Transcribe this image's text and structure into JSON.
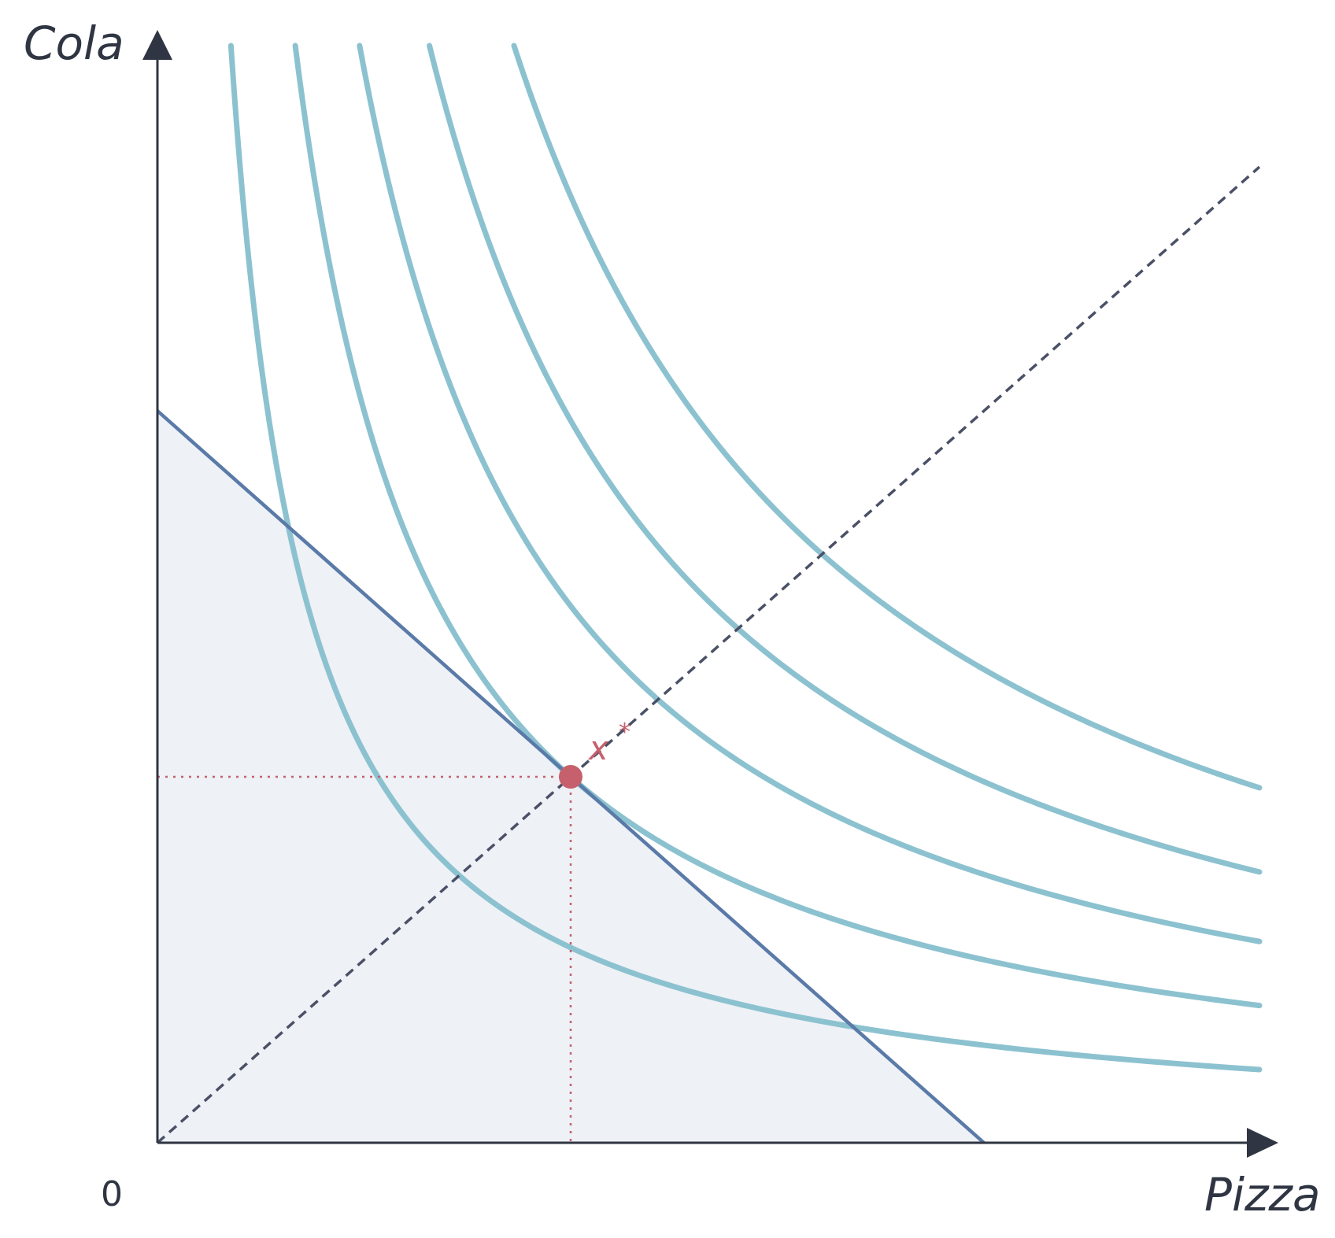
{
  "axes": {
    "x_label": "Pizza",
    "y_label": "Cola",
    "origin_label": "0"
  },
  "optimum": {
    "label": "x",
    "superscript": "*",
    "pizza": 0.375,
    "cola": 0.5
  },
  "chart_data": {
    "type": "line",
    "xlabel": "Pizza",
    "ylabel": "Cola",
    "xlim": [
      0,
      1
    ],
    "ylim": [
      0,
      1.5
    ],
    "grid": false,
    "budget_line": {
      "x_intercept": 0.75,
      "y_intercept": 1.0
    },
    "ray_from_origin": {
      "slope": 1.3333,
      "style": "dashed"
    },
    "indifference_curves": [
      {
        "level": 0.1
      },
      {
        "level": 0.1875
      },
      {
        "level": 0.275
      },
      {
        "level": 0.37
      },
      {
        "level": 0.485
      }
    ],
    "feasible_set_shaded": true,
    "colors": {
      "indifference": "#8cc2d0",
      "budget": "#5a7aa8",
      "feasible_fill": "#eef1f6",
      "optimum": "#c6606c",
      "ray": "#4a5066",
      "axis": "#2f3542"
    }
  }
}
